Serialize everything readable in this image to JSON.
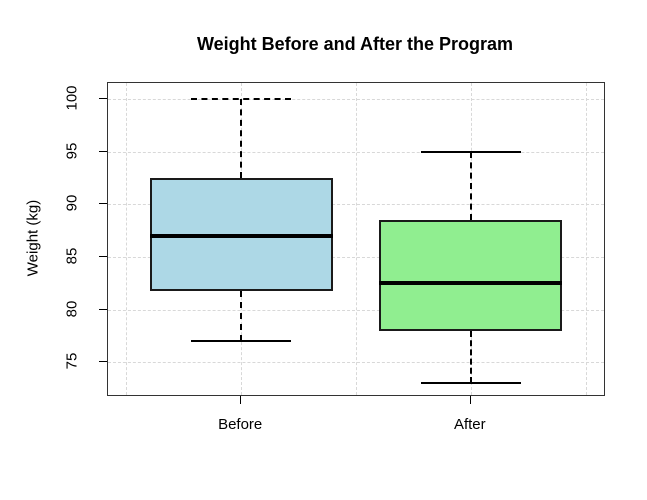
{
  "title": "Weight Before and After the Program",
  "chart_data": {
    "type": "boxplot",
    "title": "Weight Before and After the Program",
    "xlabel": "",
    "ylabel": "Weight (kg)",
    "categories": [
      "Before",
      "After"
    ],
    "series": [
      {
        "name": "Before",
        "min": 77,
        "q1": 81.8,
        "median": 87,
        "q3": 92.5,
        "max": 100,
        "fill": "#ADD8E6",
        "top_cap_style": "dashed"
      },
      {
        "name": "After",
        "min": 73,
        "q1": 78,
        "median": 82.5,
        "q3": 88.5,
        "max": 95,
        "fill": "#90EE90",
        "top_cap_style": "solid"
      }
    ],
    "x_positions": [
      1,
      2
    ],
    "xlim": [
      0.42,
      2.58
    ],
    "x_gridlines": [
      0.5,
      1,
      1.5,
      2,
      2.5
    ],
    "yticks": [
      75,
      80,
      85,
      90,
      95,
      100
    ],
    "ylim": [
      71.9,
      101.5
    ],
    "grid": true,
    "legend": "none",
    "colors": {
      "grid": "#d8d8d8",
      "box_border": "#1a1a1a",
      "median": "#000000",
      "axis_frame": "#333333"
    }
  }
}
